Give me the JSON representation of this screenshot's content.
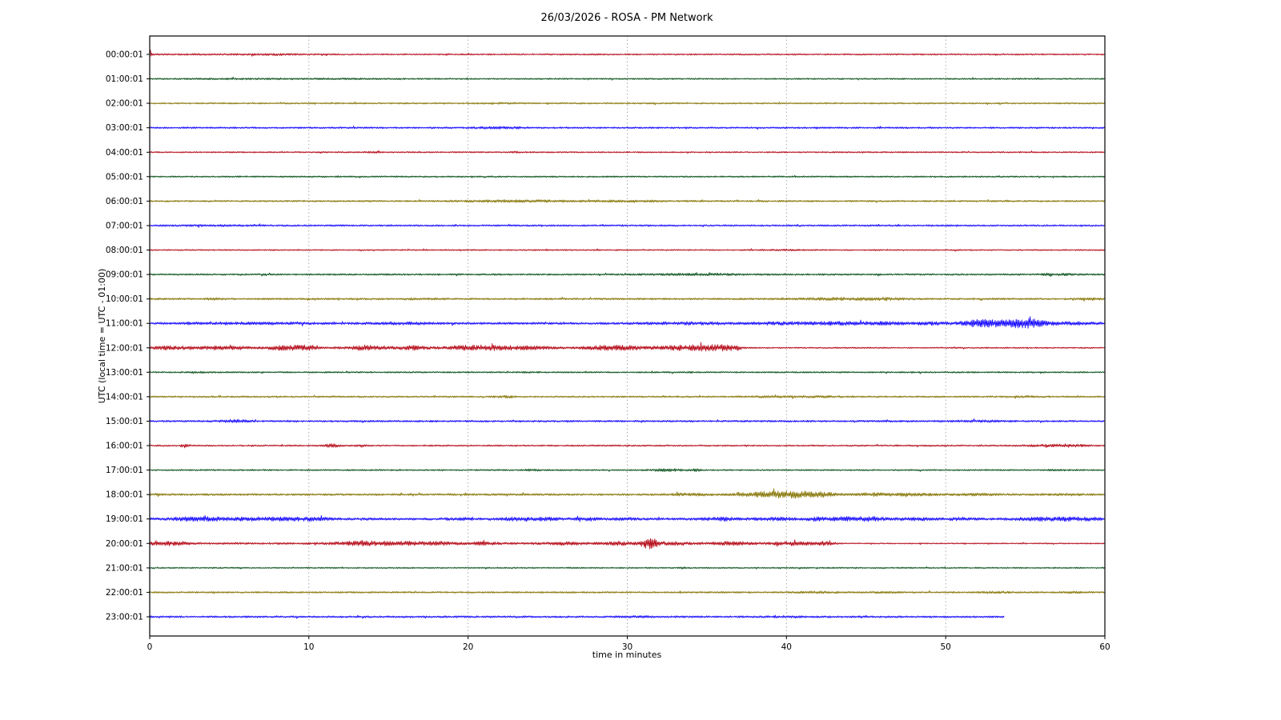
{
  "title": "26/03/2026 - ROSA - PM Network",
  "xlabel": "time in minutes",
  "ylabel": "UTC (local time = UTC - 01:00)",
  "chart_data": {
    "type": "line",
    "subtype": "seismogram-dayplot-helicorder",
    "title": "26/03/2026 - ROSA - PM Network",
    "xlabel": "time in minutes",
    "ylabel": "UTC (local time = UTC - 01:00)",
    "x_range": [
      0,
      60
    ],
    "x_ticks": [
      0,
      10,
      20,
      30,
      40,
      50,
      60
    ],
    "grid": {
      "vertical_lines_at_minutes": [
        10,
        20,
        30,
        40,
        50
      ],
      "style": "dotted",
      "color": "#999999"
    },
    "trace_color_cycle": [
      "#B2000F",
      "#004C12",
      "#847200",
      "#0E01FF"
    ],
    "rows": [
      {
        "label": "00:00:01",
        "color": "#B2000F",
        "base": 0.85,
        "events": [
          {
            "t": 0.07,
            "a": 5.0,
            "w": 0.05
          },
          {
            "t": 5,
            "a": 0.25,
            "w": 4
          },
          {
            "t": 8,
            "a": 0.35,
            "w": 1
          }
        ]
      },
      {
        "label": "01:00:01",
        "color": "#004C12",
        "base": 0.85,
        "events": [
          {
            "t": 7,
            "a": 0.35,
            "w": 3
          },
          {
            "t": 13,
            "a": 0.3,
            "w": 1
          }
        ]
      },
      {
        "label": "02:00:01",
        "color": "#847200",
        "base": 0.9,
        "events": [
          {
            "t": 22,
            "a": 0.5,
            "w": 0.8
          }
        ]
      },
      {
        "label": "03:00:01",
        "color": "#0E01FF",
        "base": 1.0,
        "events": [
          {
            "t": 22,
            "a": 0.8,
            "w": 1.2
          }
        ]
      },
      {
        "label": "04:00:01",
        "color": "#B2000F",
        "base": 0.8,
        "events": [
          {
            "t": 14,
            "a": 0.4,
            "w": 0.5
          },
          {
            "t": 23,
            "a": 0.4,
            "w": 0.5
          }
        ]
      },
      {
        "label": "05:00:01",
        "color": "#004C12",
        "base": 0.9,
        "events": []
      },
      {
        "label": "06:00:01",
        "color": "#847200",
        "base": 1.0,
        "events": [
          {
            "t": 23,
            "a": 0.8,
            "w": 2.5
          },
          {
            "t": 30,
            "a": 0.5,
            "w": 2
          }
        ]
      },
      {
        "label": "07:00:01",
        "color": "#0E01FF",
        "base": 1.0,
        "events": [
          {
            "t": 4,
            "a": 0.3,
            "w": 2
          }
        ]
      },
      {
        "label": "08:00:01",
        "color": "#B2000F",
        "base": 0.8,
        "events": [
          {
            "t": 40,
            "a": 0.3,
            "w": 1
          }
        ]
      },
      {
        "label": "09:00:01",
        "color": "#004C12",
        "base": 1.0,
        "events": [
          {
            "t": 33,
            "a": 0.6,
            "w": 1.5
          },
          {
            "t": 36,
            "a": 0.5,
            "w": 1
          },
          {
            "t": 57,
            "a": 0.7,
            "w": 0.8
          }
        ]
      },
      {
        "label": "10:00:01",
        "color": "#847200",
        "base": 1.1,
        "events": [
          {
            "t": 4,
            "a": 0.6,
            "w": 0.5
          },
          {
            "t": 17,
            "a": 0.5,
            "w": 0.8
          },
          {
            "t": 43,
            "a": 1.0,
            "w": 1.5
          },
          {
            "t": 46,
            "a": 0.8,
            "w": 1
          },
          {
            "t": 59.3,
            "a": 0.9,
            "w": 0.5
          }
        ]
      },
      {
        "label": "11:00:01",
        "color": "#0E01FF",
        "base": 1.3,
        "events": [
          {
            "t": 2.7,
            "a": 0.8,
            "w": 0.3
          },
          {
            "t": 5,
            "a": 0.6,
            "w": 1
          },
          {
            "t": 9,
            "a": 0.7,
            "w": 1.5
          },
          {
            "t": 16,
            "a": 0.7,
            "w": 1.5
          },
          {
            "t": 34,
            "a": 0.9,
            "w": 2
          },
          {
            "t": 39.5,
            "a": 0.9,
            "w": 1
          },
          {
            "t": 43,
            "a": 1.2,
            "w": 1.5
          },
          {
            "t": 46,
            "a": 1.0,
            "w": 1
          },
          {
            "t": 49,
            "a": 1.0,
            "w": 0.8
          },
          {
            "t": 52,
            "a": 2.5,
            "w": 0.8
          },
          {
            "t": 54,
            "a": 3.2,
            "w": 1.2
          },
          {
            "t": 55.5,
            "a": 2.8,
            "w": 0.7
          },
          {
            "t": 58,
            "a": 1.0,
            "w": 1
          }
        ]
      },
      {
        "label": "12:00:01",
        "color": "#B2000F",
        "base": [
          [
            0,
            37,
            1.3
          ],
          [
            37,
            60,
            0.8
          ]
        ],
        "events": [
          {
            "t": 1,
            "a": 1.5,
            "w": 0.5
          },
          {
            "t": 2.5,
            "a": 1.2,
            "w": 0.5
          },
          {
            "t": 4.2,
            "a": 1.4,
            "w": 0.6
          },
          {
            "t": 5.5,
            "a": 1.0,
            "w": 0.5
          },
          {
            "t": 8.5,
            "a": 2.0,
            "w": 0.8
          },
          {
            "t": 10,
            "a": 1.8,
            "w": 0.6
          },
          {
            "t": 13.8,
            "a": 2.2,
            "w": 0.8
          },
          {
            "t": 16.5,
            "a": 1.6,
            "w": 0.6
          },
          {
            "t": 20,
            "a": 1.8,
            "w": 1
          },
          {
            "t": 22,
            "a": 1.5,
            "w": 1
          },
          {
            "t": 24,
            "a": 1.2,
            "w": 0.8
          },
          {
            "t": 28.5,
            "a": 1.6,
            "w": 1
          },
          {
            "t": 30,
            "a": 1.3,
            "w": 0.8
          },
          {
            "t": 33,
            "a": 1.5,
            "w": 1
          },
          {
            "t": 35,
            "a": 2.2,
            "w": 1
          },
          {
            "t": 36.3,
            "a": 1.8,
            "w": 0.5
          }
        ]
      },
      {
        "label": "13:00:01",
        "color": "#004C12",
        "base": 0.9,
        "events": [
          {
            "t": 3,
            "a": 0.4,
            "w": 0.5
          },
          {
            "t": 24,
            "a": 0.3,
            "w": 0.5
          }
        ]
      },
      {
        "label": "14:00:01",
        "color": "#847200",
        "base": 1.0,
        "events": [
          {
            "t": 22.4,
            "a": 0.8,
            "w": 0.4
          },
          {
            "t": 39,
            "a": 0.5,
            "w": 1
          },
          {
            "t": 42,
            "a": 0.6,
            "w": 1
          },
          {
            "t": 55,
            "a": 0.4,
            "w": 0.8
          }
        ]
      },
      {
        "label": "15:00:01",
        "color": "#0E01FF",
        "base": 1.1,
        "events": [
          {
            "t": 5.3,
            "a": 1.2,
            "w": 0.6
          },
          {
            "t": 52,
            "a": 0.5,
            "w": 1
          }
        ]
      },
      {
        "label": "16:00:01",
        "color": "#B2000F",
        "base": 0.9,
        "events": [
          {
            "t": 2.2,
            "a": 1.8,
            "w": 0.15
          },
          {
            "t": 11.5,
            "a": 1.5,
            "w": 0.4
          },
          {
            "t": 13.3,
            "a": 1.2,
            "w": 0.2
          },
          {
            "t": 56.5,
            "a": 0.8,
            "w": 1
          },
          {
            "t": 58,
            "a": 0.8,
            "w": 0.8
          }
        ]
      },
      {
        "label": "17:00:01",
        "color": "#004C12",
        "base": 0.9,
        "events": [
          {
            "t": 24,
            "a": 0.7,
            "w": 0.4
          },
          {
            "t": 32.5,
            "a": 0.9,
            "w": 0.8
          },
          {
            "t": 34.3,
            "a": 1.1,
            "w": 0.2
          },
          {
            "t": 57,
            "a": 0.4,
            "w": 0.5
          }
        ]
      },
      {
        "label": "18:00:01",
        "color": "#847200",
        "base": 1.2,
        "events": [
          {
            "t": 34,
            "a": 0.8,
            "w": 1
          },
          {
            "t": 38.5,
            "a": 2.2,
            "w": 1
          },
          {
            "t": 40.3,
            "a": 2.8,
            "w": 0.8
          },
          {
            "t": 42,
            "a": 2.2,
            "w": 0.8
          },
          {
            "t": 45.5,
            "a": 1.2,
            "w": 0.7
          },
          {
            "t": 48,
            "a": 1.0,
            "w": 1
          },
          {
            "t": 52,
            "a": 0.7,
            "w": 1
          },
          {
            "t": 57.5,
            "a": 0.6,
            "w": 0.8
          }
        ]
      },
      {
        "label": "19:00:01",
        "color": "#0E01FF",
        "base": 1.4,
        "events": [
          {
            "t": 2.5,
            "a": 1.3,
            "w": 0.8
          },
          {
            "t": 4,
            "a": 1.2,
            "w": 0.6
          },
          {
            "t": 6,
            "a": 1.3,
            "w": 0.8
          },
          {
            "t": 8.5,
            "a": 1.4,
            "w": 1
          },
          {
            "t": 10.5,
            "a": 1.0,
            "w": 0.6
          },
          {
            "t": 19.5,
            "a": 0.8,
            "w": 0.6
          },
          {
            "t": 23,
            "a": 1.1,
            "w": 0.8
          },
          {
            "t": 25,
            "a": 0.9,
            "w": 0.8
          },
          {
            "t": 27.5,
            "a": 1.0,
            "w": 0.6
          },
          {
            "t": 30,
            "a": 0.8,
            "w": 0.5
          },
          {
            "t": 36,
            "a": 1.1,
            "w": 1
          },
          {
            "t": 39.5,
            "a": 1.1,
            "w": 0.8
          },
          {
            "t": 42,
            "a": 1.2,
            "w": 0.6
          },
          {
            "t": 44,
            "a": 1.6,
            "w": 0.9
          },
          {
            "t": 45.5,
            "a": 1.3,
            "w": 0.5
          },
          {
            "t": 48,
            "a": 0.9,
            "w": 0.8
          },
          {
            "t": 51,
            "a": 0.9,
            "w": 0.6
          },
          {
            "t": 55.5,
            "a": 1.2,
            "w": 0.8
          },
          {
            "t": 57.5,
            "a": 1.3,
            "w": 0.8
          },
          {
            "t": 59,
            "a": 1.0,
            "w": 0.5
          }
        ]
      },
      {
        "label": "20:00:01",
        "color": "#B2000F",
        "base": [
          [
            0,
            43,
            1.2
          ],
          [
            43,
            60,
            0.7
          ]
        ],
        "events": [
          {
            "t": 0.8,
            "a": 1.4,
            "w": 0.6
          },
          {
            "t": 2,
            "a": 1.2,
            "w": 0.5
          },
          {
            "t": 12.5,
            "a": 1.3,
            "w": 0.8
          },
          {
            "t": 14,
            "a": 1.5,
            "w": 0.8
          },
          {
            "t": 16,
            "a": 1.4,
            "w": 1
          },
          {
            "t": 18,
            "a": 1.3,
            "w": 0.8
          },
          {
            "t": 21,
            "a": 1.0,
            "w": 0.8
          },
          {
            "t": 26,
            "a": 0.9,
            "w": 1
          },
          {
            "t": 29.5,
            "a": 1.3,
            "w": 0.8
          },
          {
            "t": 31.4,
            "a": 5.5,
            "w": 0.35
          },
          {
            "t": 33,
            "a": 1.2,
            "w": 0.8
          },
          {
            "t": 36.5,
            "a": 1.4,
            "w": 1
          },
          {
            "t": 40.5,
            "a": 1.5,
            "w": 1
          },
          {
            "t": 42.5,
            "a": 1.2,
            "w": 0.5
          }
        ]
      },
      {
        "label": "21:00:01",
        "color": "#004C12",
        "base": 0.8,
        "events": [
          {
            "t": 33.5,
            "a": 0.8,
            "w": 0.15
          }
        ]
      },
      {
        "label": "22:00:01",
        "color": "#847200",
        "base": 1.0,
        "events": [
          {
            "t": 42,
            "a": 0.5,
            "w": 1
          },
          {
            "t": 46,
            "a": 0.4,
            "w": 0.8
          },
          {
            "t": 53,
            "a": 0.6,
            "w": 0.8
          },
          {
            "t": 58,
            "a": 0.5,
            "w": 0.6
          }
        ]
      },
      {
        "label": "23:00:01",
        "color": "#0E01FF",
        "base": 1.1,
        "end": 53.7,
        "events": [
          {
            "t": 31,
            "a": 0.4,
            "w": 1
          },
          {
            "t": 40,
            "a": 0.5,
            "w": 0.8
          }
        ]
      }
    ]
  }
}
